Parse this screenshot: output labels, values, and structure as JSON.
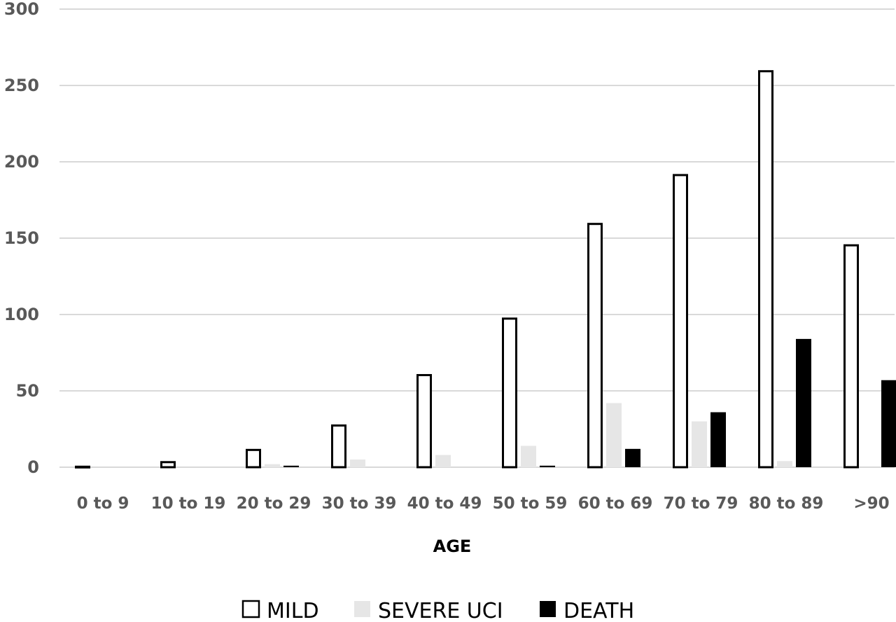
{
  "chart_data": {
    "type": "bar",
    "categories": [
      "0 to 9",
      "10 to 19",
      "20 to 29",
      "30 to 39",
      "40 to 49",
      "50 to 59",
      "60 to 69",
      "70 to 79",
      "80 to 89",
      ">90"
    ],
    "series": [
      {
        "name": "MILD",
        "values": [
          1,
          4,
          12,
          28,
          61,
          98,
          160,
          192,
          260,
          146
        ],
        "fill": "#ffffff",
        "stroke": "#000000"
      },
      {
        "name": "SEVERE UCI",
        "values": [
          0,
          0,
          2,
          5,
          8,
          14,
          42,
          30,
          4,
          0
        ],
        "fill": "#e6e6e6",
        "stroke": "none"
      },
      {
        "name": "DEATH",
        "values": [
          0,
          0,
          1,
          0,
          0,
          1,
          12,
          36,
          84,
          57
        ],
        "fill": "#000000",
        "stroke": "none"
      }
    ],
    "yticks": [
      "0",
      "50",
      "100",
      "150",
      "200",
      "250",
      "300"
    ],
    "ylim": [
      0,
      300
    ],
    "xlabel": "AGE",
    "ylabel": "",
    "title": "",
    "grid": true,
    "legend_position": "bottom-center"
  }
}
